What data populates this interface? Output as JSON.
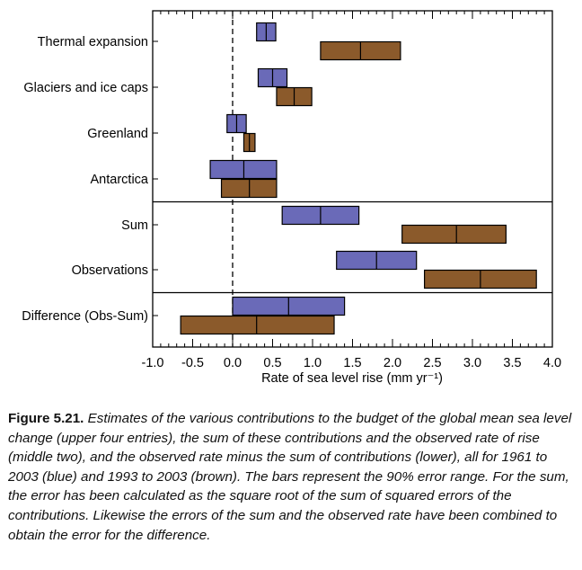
{
  "chart_data": {
    "type": "bar",
    "orientation": "horizontal",
    "xlabel": "Rate of sea level rise (mm yr⁻¹)",
    "xlim": [
      -1.0,
      4.0
    ],
    "xticks": [
      "-1.0",
      "-0.5",
      "0.0",
      "0.5",
      "1.0",
      "1.5",
      "2.0",
      "2.5",
      "3.0",
      "3.5",
      "4.0"
    ],
    "zero_line": "dashed",
    "categories": [
      "Thermal expansion",
      "Glaciers and ice caps",
      "Greenland",
      "Antarctica",
      "Sum",
      "Observations",
      "Difference (Obs-Sum)"
    ],
    "group_separators_after": [
      "Antarctica",
      "Observations"
    ],
    "series": [
      {
        "period": "1961 to 2003",
        "color": "#6a6ab8",
        "values": [
          {
            "category": "Thermal expansion",
            "low": 0.3,
            "mid": 0.42,
            "high": 0.54
          },
          {
            "category": "Glaciers and ice caps",
            "low": 0.32,
            "mid": 0.5,
            "high": 0.68
          },
          {
            "category": "Greenland",
            "low": -0.07,
            "mid": 0.05,
            "high": 0.17
          },
          {
            "category": "Antarctica",
            "low": -0.28,
            "mid": 0.14,
            "high": 0.55
          },
          {
            "category": "Sum",
            "low": 0.62,
            "mid": 1.1,
            "high": 1.58
          },
          {
            "category": "Observations",
            "low": 1.3,
            "mid": 1.8,
            "high": 2.3
          },
          {
            "category": "Difference (Obs-Sum)",
            "low": 0.0,
            "mid": 0.7,
            "high": 1.4
          }
        ]
      },
      {
        "period": "1993 to 2003",
        "color": "#8b5a2b",
        "values": [
          {
            "category": "Thermal expansion",
            "low": 1.1,
            "mid": 1.6,
            "high": 2.1
          },
          {
            "category": "Glaciers and ice caps",
            "low": 0.55,
            "mid": 0.77,
            "high": 0.99
          },
          {
            "category": "Greenland",
            "low": 0.14,
            "mid": 0.21,
            "high": 0.28
          },
          {
            "category": "Antarctica",
            "low": -0.14,
            "mid": 0.21,
            "high": 0.55
          },
          {
            "category": "Sum",
            "low": 2.12,
            "mid": 2.8,
            "high": 3.42
          },
          {
            "category": "Observations",
            "low": 2.4,
            "mid": 3.1,
            "high": 3.8
          },
          {
            "category": "Difference (Obs-Sum)",
            "low": -0.65,
            "mid": 0.3,
            "high": 1.27
          }
        ]
      }
    ]
  },
  "caption": {
    "label": "Figure 5.21.",
    "text": "Estimates of the various contributions to the budget of the global mean sea level change (upper four entries), the sum of these contributions and the observed rate of rise (middle two), and the observed rate minus the sum of contributions (lower), all for 1961 to 2003 (blue) and 1993 to 2003 (brown). The bars represent the 90% error range. For the sum, the error has been calculated as the square root of the sum of squared errors of the contributions. Likewise the errors of the sum and the observed rate have been combined to obtain the error for the difference."
  }
}
